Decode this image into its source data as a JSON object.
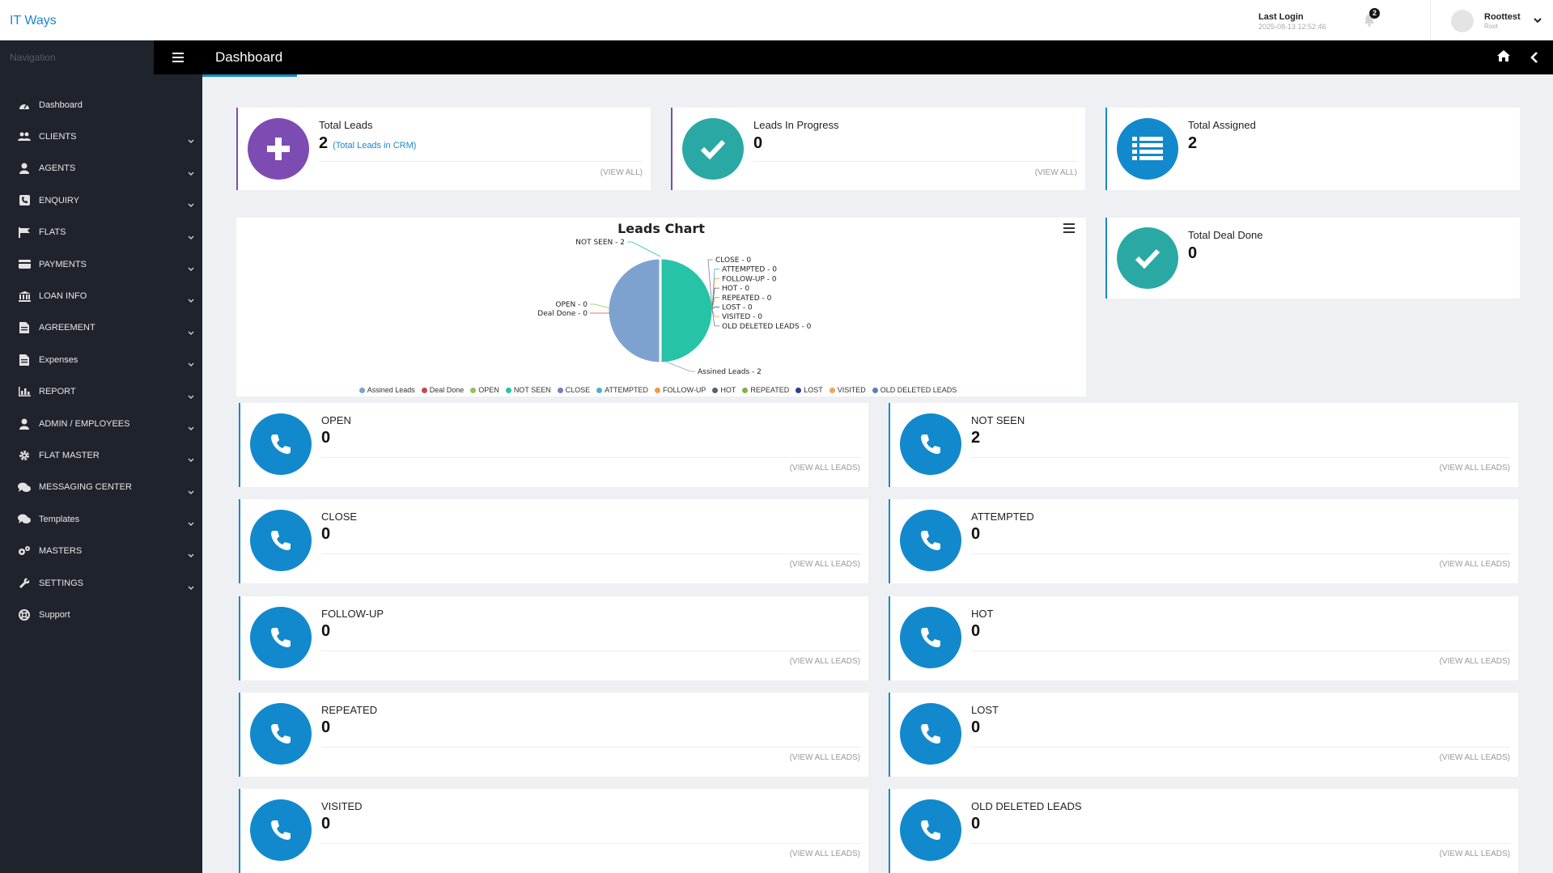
{
  "header": {
    "brand": "IT Ways",
    "last_login_label": "Last Login",
    "last_login_time": "2025-08-13 12:52:46",
    "notification_count": "2",
    "user_name": "Roottest",
    "user_role": "Root"
  },
  "sidebar": {
    "title": "Navigation",
    "items": [
      {
        "label": "Dashboard",
        "icon": "dashboard-icon",
        "expandable": false
      },
      {
        "label": "CLIENTS",
        "icon": "users-icon",
        "expandable": true
      },
      {
        "label": "AGENTS",
        "icon": "agent-icon",
        "expandable": true
      },
      {
        "label": "ENQUIRY",
        "icon": "phone-square-icon",
        "expandable": true
      },
      {
        "label": "FLATS",
        "icon": "flag-icon",
        "expandable": true
      },
      {
        "label": "PAYMENTS",
        "icon": "credit-card-icon",
        "expandable": true
      },
      {
        "label": "LOAN INFO",
        "icon": "bank-icon",
        "expandable": true
      },
      {
        "label": "AGREEMENT",
        "icon": "document-icon",
        "expandable": true
      },
      {
        "label": "Expenses",
        "icon": "document-icon",
        "expandable": true
      },
      {
        "label": "REPORT",
        "icon": "bar-chart-icon",
        "expandable": true
      },
      {
        "label": "ADMIN / EMPLOYEES",
        "icon": "agent-icon",
        "expandable": true
      },
      {
        "label": "FLAT MASTER",
        "icon": "gear-icon",
        "expandable": true
      },
      {
        "label": "MESSAGING CENTER",
        "icon": "comments-icon",
        "expandable": true
      },
      {
        "label": "Templates",
        "icon": "comments-icon",
        "expandable": true
      },
      {
        "label": "MASTERS",
        "icon": "gears-icon",
        "expandable": true
      },
      {
        "label": "SETTINGS",
        "icon": "wrench-icon",
        "expandable": true
      },
      {
        "label": "Support",
        "icon": "lifebuoy-icon",
        "expandable": false
      }
    ]
  },
  "page": {
    "title": "Dashboard"
  },
  "summary": {
    "total_leads": {
      "label": "Total Leads",
      "value": "2",
      "sub": "(Total Leads in CRM)",
      "link": "(VIEW ALL)"
    },
    "in_progress": {
      "label": "Leads In Progress",
      "value": "0",
      "link": "(VIEW ALL)"
    },
    "total_assigned": {
      "label": "Total Assigned",
      "value": "2"
    },
    "deal_done": {
      "label": "Total Deal Done",
      "value": "0"
    }
  },
  "chart_data": {
    "type": "pie",
    "title": "Leads Chart",
    "categories": [
      "Assined Leads",
      "Deal Done",
      "OPEN",
      "NOT SEEN",
      "CLOSE",
      "ATTEMPTED",
      "FOLLOW-UP",
      "HOT",
      "REPEATED",
      "LOST",
      "VISITED",
      "OLD DELETED LEADS"
    ],
    "values": [
      2,
      0,
      0,
      2,
      0,
      0,
      0,
      0,
      0,
      0,
      0,
      0
    ],
    "colors": [
      "#7ea2cf",
      "#c9474b",
      "#8fc456",
      "#26c3a6",
      "#7f78c2",
      "#4ab0d6",
      "#f39a45",
      "#556270",
      "#7fb14a",
      "#2b3f8f",
      "#f2a45b",
      "#5c7fbd"
    ],
    "data_labels": [
      "Assined Leads - 2",
      "Deal Done - 0",
      "OPEN - 0",
      "NOT SEEN - 2",
      "CLOSE - 0",
      "ATTEMPTED - 0",
      "FOLLOW-UP - 0",
      "HOT - 0",
      "REPEATED - 0",
      "LOST - 0",
      "VISITED - 0",
      "OLD DELETED LEADS - 0"
    ],
    "legend_position": "bottom"
  },
  "lead_status": [
    {
      "label": "OPEN",
      "value": "0",
      "link": "(VIEW ALL LEADS)"
    },
    {
      "label": "NOT SEEN",
      "value": "2",
      "link": "(VIEW ALL LEADS)"
    },
    {
      "label": "CLOSE",
      "value": "0",
      "link": "(VIEW ALL LEADS)"
    },
    {
      "label": "ATTEMPTED",
      "value": "0",
      "link": "(VIEW ALL LEADS)"
    },
    {
      "label": "FOLLOW-UP",
      "value": "0",
      "link": "(VIEW ALL LEADS)"
    },
    {
      "label": "HOT",
      "value": "0",
      "link": "(VIEW ALL LEADS)"
    },
    {
      "label": "REPEATED",
      "value": "0",
      "link": "(VIEW ALL LEADS)"
    },
    {
      "label": "LOST",
      "value": "0",
      "link": "(VIEW ALL LEADS)"
    },
    {
      "label": "VISITED",
      "value": "0",
      "link": "(VIEW ALL LEADS)"
    },
    {
      "label": "OLD DELETED LEADS",
      "value": "0",
      "link": "(VIEW ALL LEADS)"
    }
  ],
  "icons": {
    "lead_status": "phone-icon",
    "total_leads": "plus-icon",
    "in_progress": "check-icon",
    "total_assigned": "list-icon",
    "deal_done": "check-icon"
  }
}
